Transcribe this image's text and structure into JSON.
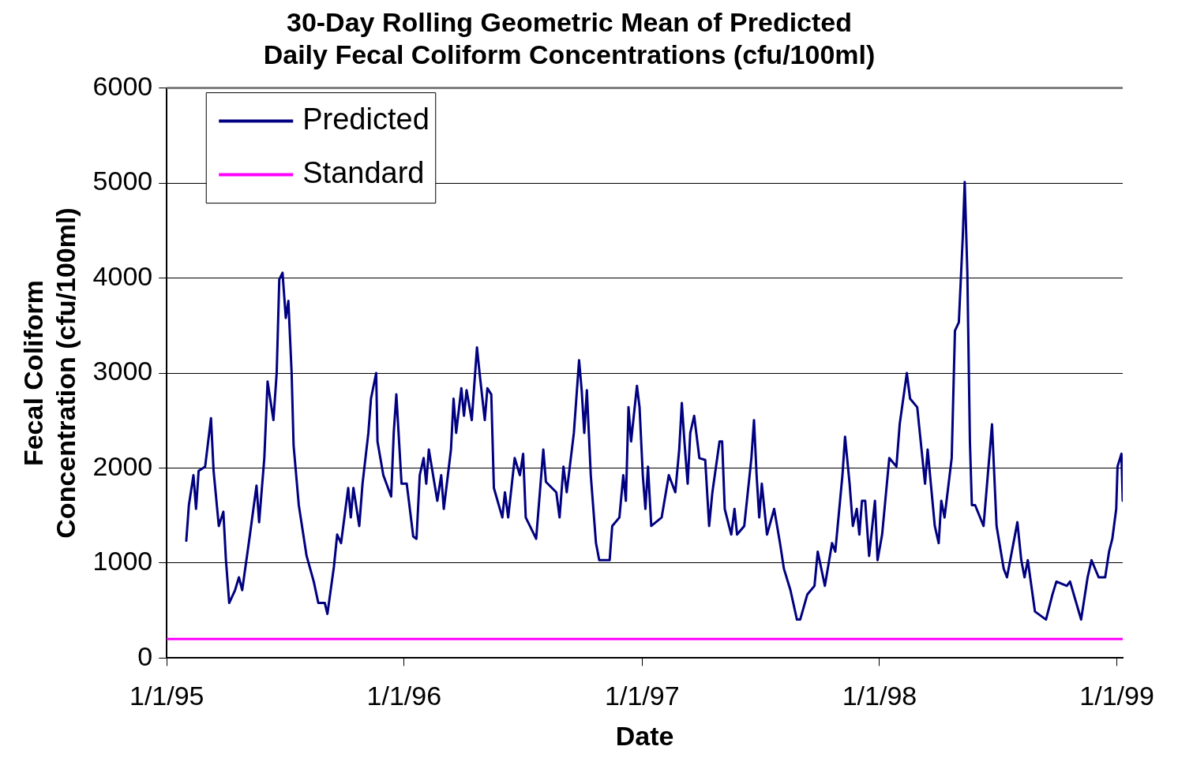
{
  "chart_data": {
    "type": "line",
    "title": "30-Day Rolling Geometric Mean of Predicted Daily Fecal Coliform Concentrations (cfu/100ml)",
    "xlabel": "Date",
    "ylabel": "Fecal Coliform Concentration (cfu/100ml)",
    "xlim": [
      "1995-01-01",
      "1999-01-10"
    ],
    "xticks": [
      {
        "value": "1995-01-01",
        "label": "1/1/95"
      },
      {
        "value": "1996-01-01",
        "label": "1/1/96"
      },
      {
        "value": "1997-01-01",
        "label": "1/1/97"
      },
      {
        "value": "1998-01-01",
        "label": "1/1/98"
      },
      {
        "value": "1999-01-01",
        "label": "1/1/99"
      }
    ],
    "ylim": [
      0,
      6000
    ],
    "yticks": [
      0,
      1000,
      2000,
      3000,
      4000,
      5000,
      6000
    ],
    "grid": "y",
    "legend": "top left",
    "marker": "none",
    "line_style": "solid",
    "series": [
      {
        "name": "Predicted",
        "color": "#000080",
        "x": [
          "1995-01-31",
          "1995-02-04",
          "1995-02-11",
          "1995-02-15",
          "1995-02-19",
          "1995-03-01",
          "1995-03-10",
          "1995-03-14",
          "1995-03-22",
          "1995-03-29",
          "1995-04-02",
          "1995-04-07",
          "1995-04-16",
          "1995-04-22",
          "1995-04-27",
          "1995-05-08",
          "1995-05-19",
          "1995-05-23",
          "1995-05-31",
          "1995-06-05",
          "1995-06-14",
          "1995-06-19",
          "1995-06-23",
          "1995-06-28",
          "1995-07-03",
          "1995-07-07",
          "1995-07-12",
          "1995-07-15",
          "1995-07-23",
          "1995-08-04",
          "1995-08-15",
          "1995-08-22",
          "1995-09-01",
          "1995-09-05",
          "1995-09-15",
          "1995-09-20",
          "1995-09-26",
          "1995-10-07",
          "1995-10-11",
          "1995-10-15",
          "1995-10-24",
          "1995-10-29",
          "1995-11-07",
          "1995-11-11",
          "1995-11-19",
          "1995-11-21",
          "1995-11-30",
          "1995-12-12",
          "1995-12-16",
          "1995-12-20",
          "1995-12-28",
          "1996-01-05",
          "1996-01-15",
          "1996-01-20",
          "1996-01-25",
          "1996-01-31",
          "1996-02-04",
          "1996-02-08",
          "1996-02-21",
          "1996-02-27",
          "1996-03-02",
          "1996-03-13",
          "1996-03-17",
          "1996-03-21",
          "1996-03-29",
          "1996-04-02",
          "1996-04-06",
          "1996-04-14",
          "1996-04-22",
          "1996-04-26",
          "1996-05-04",
          "1996-05-08",
          "1996-05-14",
          "1996-05-18",
          "1996-05-31",
          "1996-06-04",
          "1996-06-09",
          "1996-06-19",
          "1996-06-27",
          "1996-07-02",
          "1996-07-06",
          "1996-07-22",
          "1996-08-02",
          "1996-08-06",
          "1996-08-22",
          "1996-08-27",
          "1996-09-02",
          "1996-09-07",
          "1996-09-18",
          "1996-09-26",
          "1996-09-30",
          "1996-10-04",
          "1996-10-08",
          "1996-10-14",
          "1996-10-22",
          "1996-10-27",
          "1996-11-12",
          "1996-11-16",
          "1996-11-27",
          "1996-12-03",
          "1996-12-07",
          "1996-12-11",
          "1996-12-15",
          "1996-12-24",
          "1996-12-28",
          "1997-01-02",
          "1997-01-06",
          "1997-01-10",
          "1997-01-15",
          "1997-01-31",
          "1997-02-11",
          "1997-02-21",
          "1997-02-27",
          "1997-03-03",
          "1997-03-07",
          "1997-03-12",
          "1997-03-16",
          "1997-03-22",
          "1997-03-30",
          "1997-04-08",
          "1997-04-14",
          "1997-04-19",
          "1997-04-30",
          "1997-05-04",
          "1997-05-08",
          "1997-05-18",
          "1997-05-23",
          "1997-05-27",
          "1997-06-07",
          "1997-06-18",
          "1997-06-22",
          "1997-06-26",
          "1997-06-30",
          "1997-07-04",
          "1997-07-12",
          "1997-07-23",
          "1997-08-01",
          "1997-08-07",
          "1997-08-17",
          "1997-08-27",
          "1997-09-01",
          "1997-09-12",
          "1997-09-23",
          "1997-09-28",
          "1997-10-09",
          "1997-10-20",
          "1997-10-25",
          "1997-11-05",
          "1997-11-09",
          "1997-11-16",
          "1997-11-21",
          "1997-11-27",
          "1997-12-01",
          "1997-12-05",
          "1997-12-10",
          "1997-12-16",
          "1997-12-25",
          "1997-12-29",
          "1998-01-05",
          "1998-01-16",
          "1998-01-27",
          "1998-02-01",
          "1998-02-12",
          "1998-02-17",
          "1998-02-28",
          "1998-03-04",
          "1998-03-12",
          "1998-03-16",
          "1998-03-27",
          "1998-04-02",
          "1998-04-06",
          "1998-04-11",
          "1998-04-22",
          "1998-04-27",
          "1998-05-03",
          "1998-05-09",
          "1998-05-12",
          "1998-05-16",
          "1998-05-20",
          "1998-05-23",
          "1998-05-28",
          "1998-06-10",
          "1998-06-23",
          "1998-06-30",
          "1998-07-11",
          "1998-07-16",
          "1998-07-21",
          "1998-08-01",
          "1998-08-07",
          "1998-08-12",
          "1998-08-17",
          "1998-08-28",
          "1998-09-14",
          "1998-09-24",
          "1998-09-30",
          "1998-10-16",
          "1998-10-21",
          "1998-11-07",
          "1998-11-17",
          "1998-11-23",
          "1998-12-04",
          "1998-12-14",
          "1998-12-20",
          "1998-12-25",
          "1998-12-31",
          "1999-01-02",
          "1999-01-08",
          "1999-01-10"
        ],
        "values": [
          1235,
          1610,
          1925,
          1570,
          1970,
          2015,
          2525,
          1970,
          1390,
          1540,
          1030,
          580,
          715,
          850,
          715,
          1255,
          1815,
          1430,
          2105,
          2910,
          2505,
          3000,
          3985,
          4055,
          3580,
          3760,
          3000,
          2240,
          1610,
          1075,
          805,
          580,
          580,
          465,
          960,
          1300,
          1210,
          1790,
          1480,
          1790,
          1390,
          1835,
          2370,
          2730,
          3000,
          2280,
          1925,
          1700,
          2370,
          2775,
          1835,
          1835,
          1280,
          1255,
          1925,
          2105,
          1835,
          2195,
          1655,
          1925,
          1570,
          2195,
          2730,
          2370,
          2840,
          2550,
          2820,
          2505,
          3270,
          3000,
          2505,
          2840,
          2775,
          1790,
          1480,
          1745,
          1480,
          2105,
          1925,
          2150,
          1480,
          1255,
          2195,
          1855,
          1745,
          1480,
          2015,
          1745,
          2370,
          3135,
          2820,
          2370,
          2820,
          1925,
          1210,
          1030,
          1030,
          1390,
          1480,
          1925,
          1655,
          2640,
          2280,
          2865,
          2640,
          1925,
          1570,
          2015,
          1390,
          1480,
          1925,
          1745,
          2195,
          2685,
          2280,
          1835,
          2370,
          2550,
          2105,
          2085,
          1390,
          1745,
          2280,
          2280,
          1570,
          1300,
          1570,
          1300,
          1390,
          2105,
          2505,
          1925,
          1480,
          1835,
          1300,
          1570,
          1210,
          940,
          715,
          405,
          405,
          670,
          760,
          1120,
          760,
          1210,
          1120,
          1925,
          2330,
          1835,
          1390,
          1570,
          1300,
          1655,
          1655,
          1075,
          1655,
          1030,
          1300,
          2105,
          2015,
          2460,
          3000,
          2730,
          2640,
          2370,
          1835,
          2195,
          1390,
          1210,
          1655,
          1480,
          2105,
          3445,
          3535,
          4430,
          5010,
          4075,
          2280,
          1610,
          1610,
          1390,
          2460,
          1390,
          940,
          850,
          1030,
          1430,
          1030,
          850,
          1030,
          490,
          405,
          670,
          805,
          760,
          805,
          405,
          850,
          1030,
          850,
          850,
          1120,
          1255,
          1570,
          2015,
          2150,
          1655
        ]
      },
      {
        "name": "Standard",
        "color": "#ff00ff",
        "x": [
          "1995-01-01",
          "1999-01-10"
        ],
        "values": [
          200,
          200
        ]
      }
    ]
  }
}
